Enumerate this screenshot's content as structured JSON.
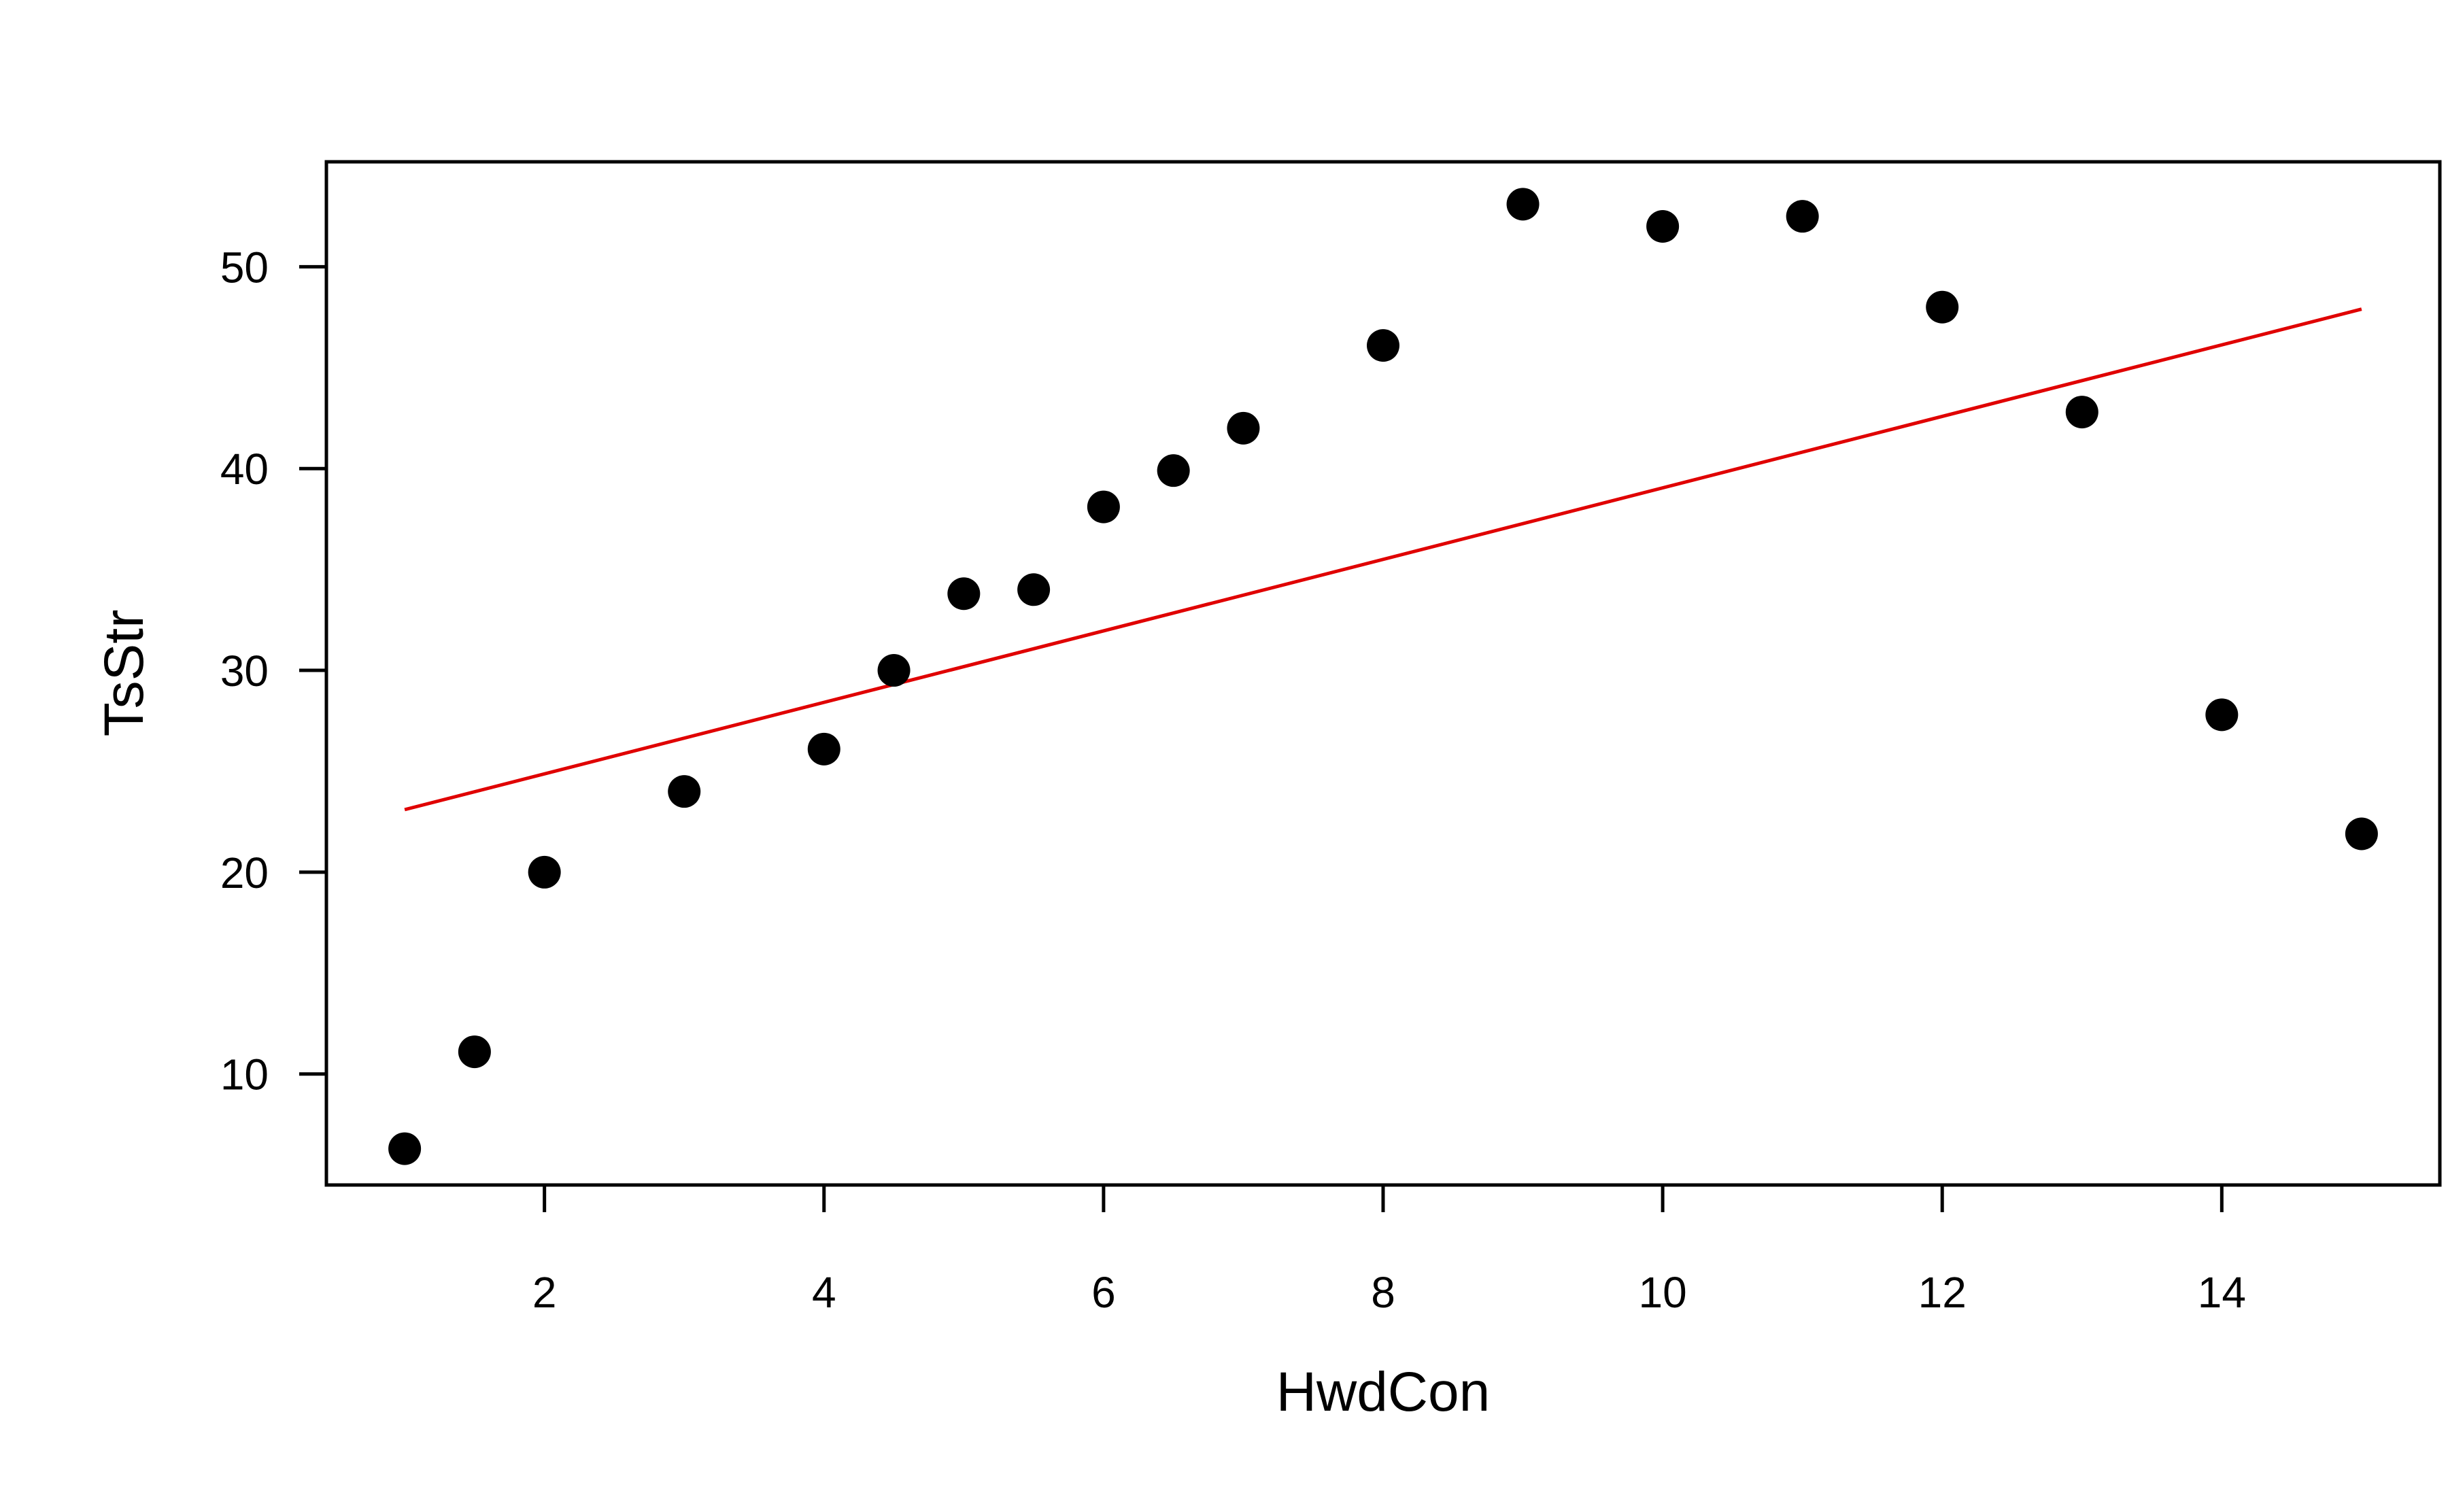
{
  "chart_data": {
    "type": "scatter",
    "title": "",
    "xlabel": "HwdCon",
    "ylabel": "TsStr",
    "xlim": [
      0.44,
      15.56
    ],
    "ylim": [
      4.5,
      55.2
    ],
    "x_ticks": [
      2,
      4,
      6,
      8,
      10,
      12,
      14
    ],
    "y_ticks": [
      10,
      20,
      30,
      40,
      50
    ],
    "grid": false,
    "legend": "none",
    "series": [
      {
        "color": "#000000",
        "marker": "filled-circle",
        "points": [
          {
            "x": 1,
            "y": 6.3
          },
          {
            "x": 1.5,
            "y": 11.1
          },
          {
            "x": 2,
            "y": 20.0
          },
          {
            "x": 3,
            "y": 24.0
          },
          {
            "x": 4,
            "y": 26.1
          },
          {
            "x": 4.5,
            "y": 30.0
          },
          {
            "x": 5,
            "y": 33.8
          },
          {
            "x": 5.5,
            "y": 34.0
          },
          {
            "x": 6,
            "y": 38.1
          },
          {
            "x": 6.5,
            "y": 39.9
          },
          {
            "x": 7,
            "y": 42.0
          },
          {
            "x": 8,
            "y": 46.1
          },
          {
            "x": 9,
            "y": 53.1
          },
          {
            "x": 10,
            "y": 52.0
          },
          {
            "x": 11,
            "y": 52.5
          },
          {
            "x": 12,
            "y": 48.0
          },
          {
            "x": 13,
            "y": 42.8
          },
          {
            "x": 14,
            "y": 27.8
          },
          {
            "x": 15,
            "y": 21.9
          }
        ]
      }
    ],
    "fit_line": {
      "color": "#e00000",
      "from": {
        "x": 1,
        "y": 23.1
      },
      "to": {
        "x": 15,
        "y": 47.9
      }
    }
  }
}
